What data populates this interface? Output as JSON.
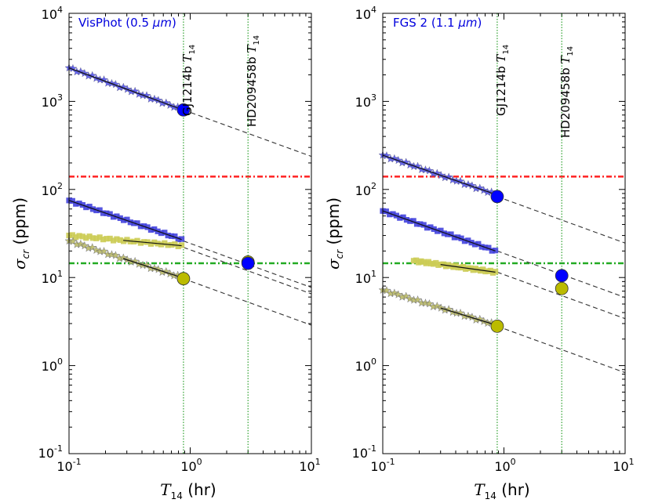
{
  "chart_data": [
    {
      "type": "scatter",
      "title": "VisPhot (0.5 μm)",
      "title_prefix": "VisPhot (0.5 ",
      "title_unit": "μm",
      "title_suffix": ")",
      "title_color": "#0000dd",
      "xlabel_main": "T",
      "xlabel_sub": "14",
      "xlabel_unit": " (hr)",
      "ylabel_main": "σ",
      "ylabel_sub": "cr",
      "ylabel_unit": " (ppm)",
      "xscale": "log",
      "yscale": "log",
      "xlim": [
        0.1,
        10
      ],
      "ylim": [
        0.1,
        10000
      ],
      "x_ticks": [
        {
          "value": 0.1,
          "base": "10",
          "exp": "-1"
        },
        {
          "value": 1,
          "base": "10",
          "exp": "0"
        },
        {
          "value": 10,
          "base": "10",
          "exp": "1"
        }
      ],
      "y_ticks": [
        {
          "value": 0.1,
          "base": "10",
          "exp": "-1"
        },
        {
          "value": 1,
          "base": "10",
          "exp": "0"
        },
        {
          "value": 10,
          "base": "10",
          "exp": "1"
        },
        {
          "value": 100,
          "base": "10",
          "exp": "2"
        },
        {
          "value": 1000,
          "base": "10",
          "exp": "3"
        },
        {
          "value": 10000,
          "base": "10",
          "exp": "4"
        }
      ],
      "vlines": [
        {
          "x": 0.88,
          "label_name": "GJ1214b",
          "label_sym": "T",
          "label_sub": "14",
          "color": "#2ca02c"
        },
        {
          "x": 3.0,
          "label_name": "HD209458b",
          "label_sym": "T",
          "label_sub": "14",
          "color": "#2ca02c"
        }
      ],
      "hlines": [
        {
          "y": 140,
          "color": "#ff2222"
        },
        {
          "y": 14.5,
          "color": "#22aa22"
        }
      ],
      "series": [
        {
          "name": "stars-blue",
          "marker": "star",
          "color": "#5555ee",
          "start_x": 0.1,
          "start_y": 2400,
          "end_x": 0.85,
          "end_y": 810,
          "slope": -0.5
        },
        {
          "name": "squares-blue",
          "marker": "square",
          "color": "#4444dd",
          "start_x": 0.1,
          "start_y": 75,
          "end_x": 0.85,
          "end_y": 27,
          "slope": -0.5
        },
        {
          "name": "squares-yellow",
          "marker": "square",
          "color": "#cccc55",
          "start_x": 0.1,
          "start_y": 30,
          "end_x": 0.85,
          "end_y": 23,
          "slope": -0.5,
          "fit_start_x": 0.28
        },
        {
          "name": "stars-yellow",
          "marker": "star",
          "color": "#bbbb66",
          "start_x": 0.1,
          "start_y": 26,
          "end_x": 0.85,
          "end_y": 10,
          "slope": -0.5,
          "fit_start_x": 0.28
        }
      ],
      "fit_lines": [
        {
          "anchor_x": 0.88,
          "anchor_y": 800
        },
        {
          "anchor_x": 0.88,
          "anchor_y": 26
        },
        {
          "anchor_x": 0.88,
          "anchor_y": 22
        },
        {
          "anchor_x": 0.88,
          "anchor_y": 9.7
        }
      ],
      "big_points": [
        {
          "x": 0.88,
          "y": 800,
          "color": "#0000ff"
        },
        {
          "x": 3.0,
          "y": 15,
          "color": "#bbbb00"
        },
        {
          "x": 3.0,
          "y": 14.5,
          "color": "#0000ff"
        },
        {
          "x": 0.88,
          "y": 9.7,
          "color": "#bbbb00"
        }
      ]
    },
    {
      "type": "scatter",
      "title": "FGS 2 (1.1 μm)",
      "title_prefix": "FGS 2 (1.1 ",
      "title_unit": "μm",
      "title_suffix": ")",
      "title_color": "#0000dd",
      "xlabel_main": "T",
      "xlabel_sub": "14",
      "xlabel_unit": " (hr)",
      "ylabel_main": "σ",
      "ylabel_sub": "cr",
      "ylabel_unit": " (ppm)",
      "xscale": "log",
      "yscale": "log",
      "xlim": [
        0.1,
        10
      ],
      "ylim": [
        0.1,
        10000
      ],
      "x_ticks": [
        {
          "value": 0.1,
          "base": "10",
          "exp": "-1"
        },
        {
          "value": 1,
          "base": "10",
          "exp": "0"
        },
        {
          "value": 10,
          "base": "10",
          "exp": "1"
        }
      ],
      "y_ticks": [
        {
          "value": 0.1,
          "base": "10",
          "exp": "-1"
        },
        {
          "value": 1,
          "base": "10",
          "exp": "0"
        },
        {
          "value": 10,
          "base": "10",
          "exp": "1"
        },
        {
          "value": 100,
          "base": "10",
          "exp": "2"
        },
        {
          "value": 1000,
          "base": "10",
          "exp": "3"
        },
        {
          "value": 10000,
          "base": "10",
          "exp": "4"
        }
      ],
      "vlines": [
        {
          "x": 0.88,
          "label_name": "GJ1214b",
          "label_sym": "T",
          "label_sub": "14",
          "color": "#2ca02c"
        },
        {
          "x": 3.0,
          "label_name": "HD209458b",
          "label_sym": "T",
          "label_sub": "14",
          "color": "#2ca02c"
        }
      ],
      "hlines": [
        {
          "y": 140,
          "color": "#ff2222"
        },
        {
          "y": 14.5,
          "color": "#22aa22"
        }
      ],
      "series": [
        {
          "name": "stars-blue",
          "marker": "star",
          "color": "#5555ee",
          "start_x": 0.1,
          "start_y": 245,
          "end_x": 0.85,
          "end_y": 88,
          "slope": -0.5
        },
        {
          "name": "squares-blue",
          "marker": "square",
          "color": "#4444dd",
          "start_x": 0.1,
          "start_y": 57,
          "end_x": 0.85,
          "end_y": 20,
          "slope": -0.5
        },
        {
          "name": "squares-yellow",
          "marker": "square",
          "color": "#cccc55",
          "start_x": 0.18,
          "start_y": 15.5,
          "end_x": 0.85,
          "end_y": 11.5,
          "slope": -0.5,
          "fit_start_x": 0.3
        },
        {
          "name": "stars-yellow",
          "marker": "star",
          "color": "#bbbb66",
          "start_x": 0.1,
          "start_y": 7.2,
          "end_x": 0.85,
          "end_y": 2.9,
          "slope": -0.5,
          "fit_start_x": 0.3
        }
      ],
      "fit_lines": [
        {
          "anchor_x": 0.88,
          "anchor_y": 83
        },
        {
          "anchor_x": 0.88,
          "anchor_y": 20
        },
        {
          "anchor_x": 0.88,
          "anchor_y": 11.5
        },
        {
          "anchor_x": 0.88,
          "anchor_y": 2.8
        }
      ],
      "big_points": [
        {
          "x": 0.88,
          "y": 83,
          "color": "#0000ff"
        },
        {
          "x": 3.0,
          "y": 10.5,
          "color": "#0000ff"
        },
        {
          "x": 3.0,
          "y": 7.5,
          "color": "#bbbb00"
        },
        {
          "x": 0.88,
          "y": 2.8,
          "color": "#bbbb00"
        }
      ]
    }
  ]
}
